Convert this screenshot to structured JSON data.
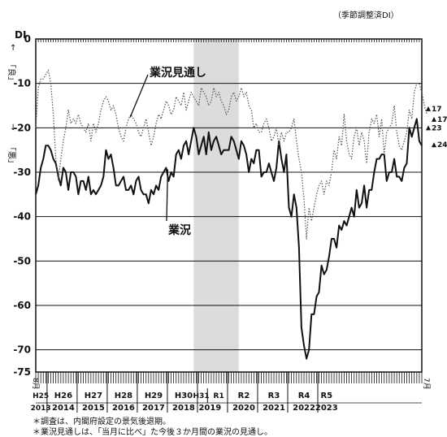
{
  "header": {
    "note": "（季節調整済DI）"
  },
  "footnotes": [
    "＊調査は、内閣府設定の景気後退期。",
    "＊業況見通しは、「当月に比べ」た今後３か月間の業況の見通し。"
  ],
  "chart_data": {
    "type": "line",
    "ylabel": "DI",
    "ylim": [
      -75,
      0
    ],
    "yticks": [
      0,
      -10,
      -20,
      -30,
      -40,
      -50,
      -60,
      -70,
      -75
    ],
    "axis_arrows": {
      "up": "↑",
      "up_label": "「良」",
      "down": "↓",
      "down_label": "「悪」"
    },
    "x_range": [
      "2013-08",
      "2023-07"
    ],
    "x_start_label": "8月",
    "x_end_label": "7月",
    "era_labels": [
      "H25",
      "H26",
      "H27",
      "H28",
      "H29",
      "H30",
      "H31",
      "R1",
      "R2",
      "R3",
      "R4",
      "R5"
    ],
    "year_labels": [
      "2013",
      "2014",
      "2015",
      "2016",
      "2017",
      "2018",
      "2019",
      "2019",
      "2020",
      "2021",
      "2022",
      "2023"
    ],
    "recession_shading": [
      "2018-11",
      "2020-05"
    ],
    "grid": true,
    "series": [
      {
        "name": "業況",
        "style": "solid",
        "color": "#111111",
        "end_labels": [
          "23",
          "24"
        ],
        "values": [
          -35,
          -33,
          -29,
          -27,
          -24,
          -24,
          -25,
          -27,
          -28,
          -31,
          -33,
          -29,
          -30,
          -34,
          -30,
          -30,
          -31,
          -35,
          -32,
          -32,
          -34,
          -31,
          -35,
          -34,
          -35,
          -34,
          -33,
          -31,
          -25,
          -27,
          -26,
          -29,
          -33,
          -33,
          -32,
          -31,
          -34,
          -34,
          -33,
          -35,
          -32,
          -31,
          -34,
          -35,
          -35,
          -37,
          -34,
          -35,
          -33,
          -34,
          -31,
          -30,
          -29,
          -32,
          -30,
          -31,
          -26,
          -25,
          -27,
          -24,
          -23,
          -26,
          -23,
          -20,
          -22,
          -26,
          -24,
          -22,
          -26,
          -21,
          -25,
          -23,
          -22,
          -24,
          -26,
          -25,
          -25,
          -25,
          -22,
          -23,
          -25,
          -27,
          -23,
          -24,
          -26,
          -30,
          -27,
          -28,
          -25,
          -25,
          -31,
          -30,
          -30,
          -28,
          -30,
          -32,
          -29,
          -23,
          -27,
          -30,
          -26,
          -38,
          -40,
          -35,
          -38,
          -47,
          -65,
          -69,
          -72,
          -70,
          -62,
          -62,
          -58,
          -57,
          -51,
          -53,
          -52,
          -49,
          -45,
          -45,
          -47,
          -42,
          -43,
          -41,
          -42,
          -40,
          -38,
          -40,
          -34,
          -38,
          -37,
          -33,
          -38,
          -34,
          -34,
          -30,
          -27,
          -27,
          -26,
          -26,
          -32,
          -30,
          -30,
          -27,
          -31,
          -31,
          -32,
          -29,
          -28,
          -20,
          -22,
          -20,
          -18,
          -23,
          -24
        ]
      },
      {
        "name": "業況見通し",
        "style": "dotted",
        "color": "#555555",
        "end_labels": [
          "17",
          "17"
        ],
        "values": [
          -20,
          -11,
          -9,
          -9,
          -8,
          -7,
          -10,
          -17,
          -27,
          -32,
          -27,
          -23,
          -20,
          -16,
          -19,
          -18,
          -19,
          -17,
          -19,
          -20,
          -21,
          -19,
          -23,
          -19,
          -21,
          -19,
          -16,
          -14,
          -13,
          -14,
          -16,
          -15,
          -17,
          -20,
          -22,
          -23,
          -20,
          -18,
          -17,
          -18,
          -19,
          -21,
          -22,
          -20,
          -18,
          -21,
          -24,
          -22,
          -19,
          -17,
          -18,
          -16,
          -14,
          -15,
          -17,
          -16,
          -13,
          -14,
          -15,
          -12,
          -16,
          -14,
          -12,
          -13,
          -14,
          -15,
          -11,
          -12,
          -13,
          -15,
          -14,
          -11,
          -13,
          -12,
          -14,
          -15,
          -17,
          -16,
          -13,
          -12,
          -14,
          -13,
          -11,
          -13,
          -12,
          -15,
          -16,
          -20,
          -19,
          -21,
          -21,
          -19,
          -18,
          -20,
          -23,
          -22,
          -20,
          -24,
          -21,
          -23,
          -21,
          -21,
          -20,
          -18,
          -23,
          -27,
          -30,
          -36,
          -45,
          -38,
          -41,
          -38,
          -35,
          -33,
          -32,
          -35,
          -32,
          -33,
          -30,
          -25,
          -27,
          -22,
          -24,
          -17,
          -23,
          -26,
          -27,
          -22,
          -20,
          -24,
          -21,
          -23,
          -28,
          -21,
          -18,
          -19,
          -17,
          -22,
          -18,
          -26,
          -21,
          -20,
          -19,
          -15,
          -21,
          -24,
          -25,
          -23,
          -21,
          -16,
          -18,
          -12,
          -10,
          -10,
          -12,
          -15,
          -17
        ]
      }
    ]
  }
}
